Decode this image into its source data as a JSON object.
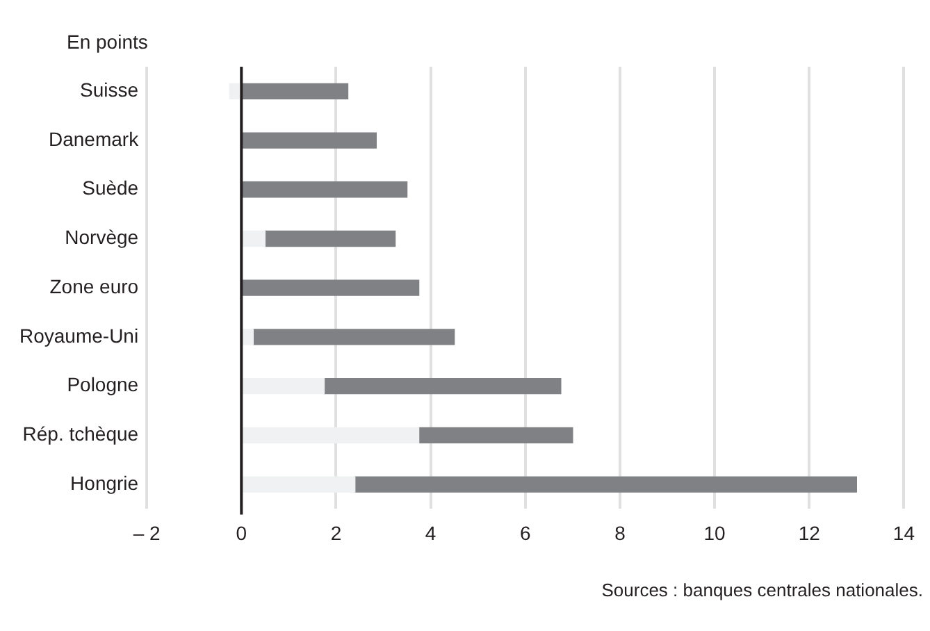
{
  "chart_data": {
    "type": "bar",
    "orientation": "horizontal",
    "stacked": true,
    "ylabel": "En points",
    "categories": [
      "Suisse",
      "Danemark",
      "Suède",
      "Norvège",
      "Zone euro",
      "Royaume-Uni",
      "Pologne",
      "Rép. tchèque",
      "Hongrie"
    ],
    "series": [
      {
        "color": "#f0f1f2",
        "values": [
          -0.25,
          0,
          0,
          0.5,
          0,
          0.25,
          1.75,
          3.75,
          2.4
        ]
      },
      {
        "color": "#808184",
        "values": [
          2.25,
          2.85,
          3.5,
          2.75,
          3.75,
          4.25,
          5.0,
          3.25,
          10.6
        ]
      }
    ],
    "xlim": [
      -2,
      14
    ],
    "xticks": [
      {
        "value": -2,
        "label": "– 2"
      },
      0,
      2,
      4,
      6,
      8,
      10,
      12,
      14
    ],
    "grid": "x",
    "legend": false,
    "annotations": [
      "Sources : banques centrales nationales."
    ]
  }
}
